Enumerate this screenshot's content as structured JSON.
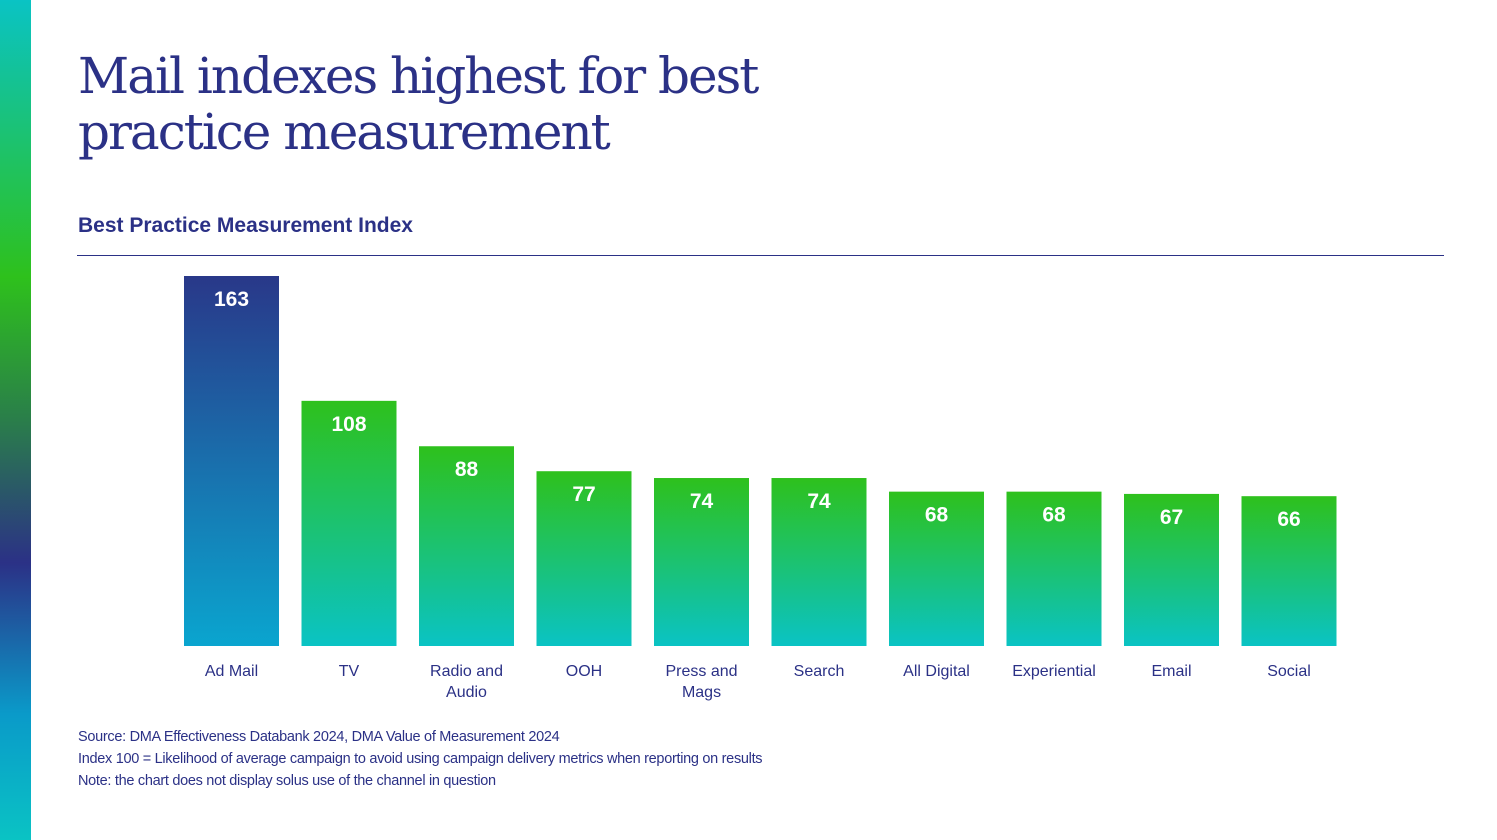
{
  "page": {
    "title_lines": [
      "Mail indexes highest for best",
      "practice measurement"
    ],
    "chart_title": "Best Practice Measurement Index",
    "notes": [
      "Source: DMA Effectiveness Databank 2024, DMA Value of Measurement 2024",
      "Index 100 = Likelihood of average campaign to avoid using campaign delivery metrics when reporting on results",
      "Note: the chart does not display solus use of the channel in question"
    ]
  },
  "colors": {
    "navy": "#2b3186",
    "green": "#2ec11c",
    "teal": "#0ac3c4",
    "highlight_top": "#293889",
    "highlight_bottom": "#0aa5cf"
  },
  "chart_data": {
    "type": "bar",
    "title": "Best Practice Measurement Index",
    "categories": [
      [
        "Ad Mail"
      ],
      [
        "TV"
      ],
      [
        "Radio and",
        "Audio"
      ],
      [
        "OOH"
      ],
      [
        "Press and",
        "Mags"
      ],
      [
        "Search"
      ],
      [
        "All Digital"
      ],
      [
        "Experiential"
      ],
      [
        "Email"
      ],
      [
        "Social"
      ]
    ],
    "values": [
      163,
      108,
      88,
      77,
      74,
      74,
      68,
      68,
      67,
      66
    ],
    "highlight_index": 0,
    "grid": false,
    "legend": "none",
    "ylim": [
      0,
      163
    ]
  }
}
